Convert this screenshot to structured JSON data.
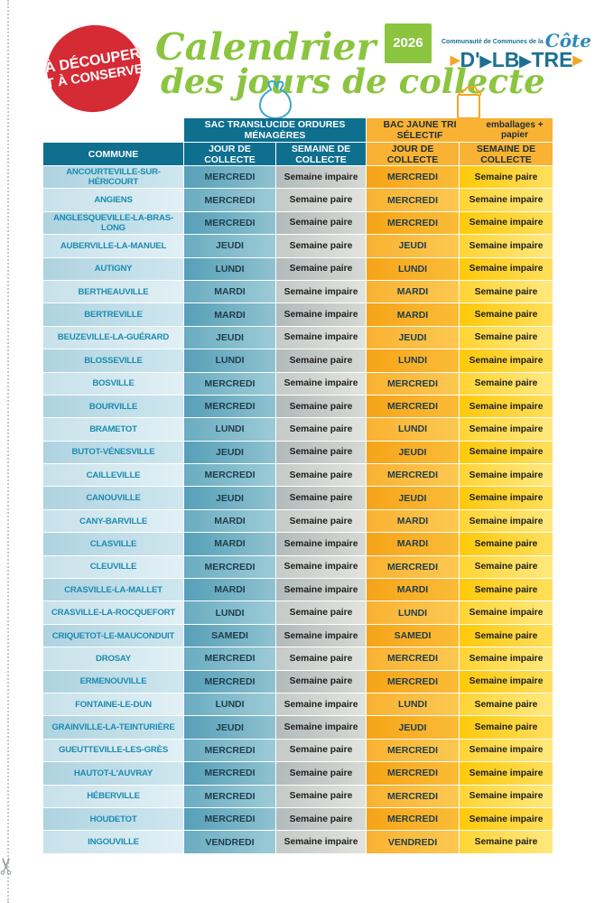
{
  "badge": {
    "line1": "À DÉCOUPER",
    "line2": "ET À CONSERVER"
  },
  "title": {
    "line1": "Calendrier",
    "year": "2026",
    "line2": "des jours de collecte"
  },
  "logo": {
    "small": "Communauté de Communes de la",
    "cote": "Côte",
    "part1": "D'",
    "part2": "LB",
    "part3": "TRE"
  },
  "icons": [
    "scissors-icon",
    "trash-bag-icon",
    "wheeled-bin-icon"
  ],
  "colors": {
    "red_badge": "#d52b35",
    "green_title": "#8bc540",
    "teal_header": "#0e6f8f",
    "orange_header": "#f9b233",
    "commune_text": "#1b8bb0",
    "logo_blue": "#1d7094",
    "logo_orange": "#f5a623",
    "bag_blue": "#3aa5d1"
  },
  "table": {
    "group_headers": {
      "ordures": "SAC TRANSLUCIDE ORDURES MÉNAGÈRES",
      "tri_main": "BAC JAUNE TRI SÉLECTIF",
      "tri_sub": "emballages + papier"
    },
    "columns": [
      "COMMUNE",
      "JOUR DE COLLECTE",
      "SEMAINE DE COLLECTE",
      "JOUR DE COLLECTE",
      "SEMAINE DE COLLECTE"
    ],
    "rows": [
      [
        "ANCOURTEVILLE-SUR-HÉRICOURT",
        "MERCREDI",
        "Semaine impaire",
        "MERCREDI",
        "Semaine paire"
      ],
      [
        "ANGIENS",
        "MERCREDI",
        "Semaine paire",
        "MERCREDI",
        "Semaine impaire"
      ],
      [
        "ANGLESQUEVILLE-LA-BRAS-LONG",
        "MERCREDI",
        "Semaine paire",
        "MERCREDI",
        "Semaine impaire"
      ],
      [
        "AUBERVILLE-LA-MANUEL",
        "JEUDI",
        "Semaine paire",
        "JEUDI",
        "Semaine impaire"
      ],
      [
        "AUTIGNY",
        "LUNDI",
        "Semaine paire",
        "LUNDI",
        "Semaine impaire"
      ],
      [
        "BERTHEAUVILLE",
        "MARDI",
        "Semaine impaire",
        "MARDI",
        "Semaine paire"
      ],
      [
        "BERTREVILLE",
        "MARDI",
        "Semaine impaire",
        "MARDI",
        "Semaine paire"
      ],
      [
        "BEUZEVILLE-LA-GUÉRARD",
        "JEUDI",
        "Semaine impaire",
        "JEUDI",
        "Semaine paire"
      ],
      [
        "BLOSSEVILLE",
        "LUNDI",
        "Semaine paire",
        "LUNDI",
        "Semaine impaire"
      ],
      [
        "BOSVILLE",
        "MERCREDI",
        "Semaine impaire",
        "MERCREDI",
        "Semaine paire"
      ],
      [
        "BOURVILLE",
        "MERCREDI",
        "Semaine paire",
        "MERCREDI",
        "Semaine impaire"
      ],
      [
        "BRAMETOT",
        "LUNDI",
        "Semaine paire",
        "LUNDI",
        "Semaine impaire"
      ],
      [
        "BUTOT-VÉNESVILLE",
        "JEUDI",
        "Semaine paire",
        "JEUDI",
        "Semaine impaire"
      ],
      [
        "CAILLEVILLE",
        "MERCREDI",
        "Semaine paire",
        "MERCREDI",
        "Semaine impaire"
      ],
      [
        "CANOUVILLE",
        "JEUDI",
        "Semaine paire",
        "JEUDI",
        "Semaine impaire"
      ],
      [
        "CANY-BARVILLE",
        "MARDI",
        "Semaine paire",
        "MARDI",
        "Semaine impaire"
      ],
      [
        "CLASVILLE",
        "MARDI",
        "Semaine impaire",
        "MARDI",
        "Semaine paire"
      ],
      [
        "CLEUVILLE",
        "MERCREDI",
        "Semaine impaire",
        "MERCREDI",
        "Semaine paire"
      ],
      [
        "CRASVILLE-LA-MALLET",
        "MARDI",
        "Semaine impaire",
        "MARDI",
        "Semaine paire"
      ],
      [
        "CRASVILLE-LA-ROCQUEFORT",
        "LUNDI",
        "Semaine paire",
        "LUNDI",
        "Semaine impaire"
      ],
      [
        "CRIQUETOT-LE-MAUCONDUIT",
        "SAMEDI",
        "Semaine impaire",
        "SAMEDI",
        "Semaine paire"
      ],
      [
        "DROSAY",
        "MERCREDI",
        "Semaine paire",
        "MERCREDI",
        "Semaine impaire"
      ],
      [
        "ERMENOUVILLE",
        "MERCREDI",
        "Semaine paire",
        "MERCREDI",
        "Semaine impaire"
      ],
      [
        "FONTAINE-LE-DUN",
        "LUNDI",
        "Semaine impaire",
        "LUNDI",
        "Semaine paire"
      ],
      [
        "GRAINVILLE-LA-TEINTURIÈRE",
        "JEUDI",
        "Semaine impaire",
        "JEUDI",
        "Semaine paire"
      ],
      [
        "GUEUTTEVILLE-LES-GRÈS",
        "MERCREDI",
        "Semaine paire",
        "MERCREDI",
        "Semaine impaire"
      ],
      [
        "HAUTOT-L'AUVRAY",
        "MERCREDI",
        "Semaine paire",
        "MERCREDI",
        "Semaine impaire"
      ],
      [
        "HÉBERVILLE",
        "MERCREDI",
        "Semaine paire",
        "MERCREDI",
        "Semaine impaire"
      ],
      [
        "HOUDETOT",
        "MERCREDI",
        "Semaine paire",
        "MERCREDI",
        "Semaine impaire"
      ],
      [
        "INGOUVILLE",
        "VENDREDI",
        "Semaine impaire",
        "VENDREDI",
        "Semaine paire"
      ]
    ]
  }
}
